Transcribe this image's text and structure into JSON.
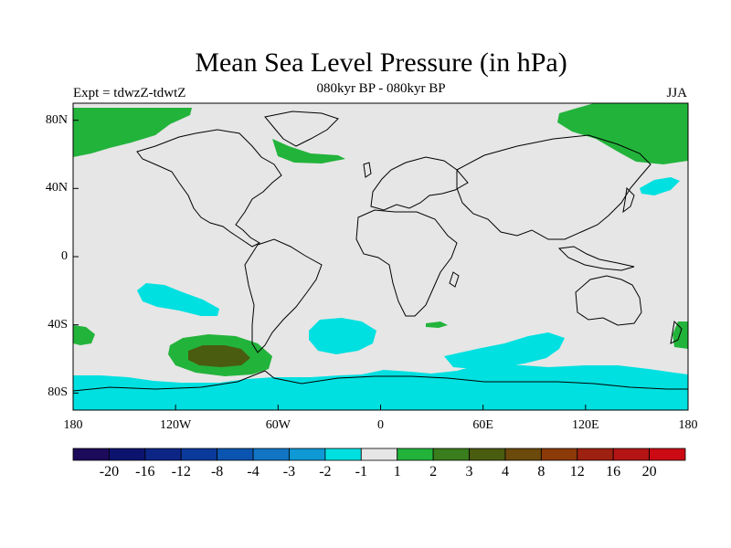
{
  "title": "Mean Sea Level Pressure (in hPa)",
  "subtitle": "080kyr BP - 080kyr BP",
  "left_label": "Expt = tdwzZ-tdwtZ",
  "right_label": "JJA",
  "lat_ticks": [
    {
      "lat": 80,
      "label": "80N"
    },
    {
      "lat": 40,
      "label": "40N"
    },
    {
      "lat": 0,
      "label": "0"
    },
    {
      "lat": -40,
      "label": "40S"
    },
    {
      "lat": -80,
      "label": "80S"
    }
  ],
  "lon_ticks": [
    {
      "lon": -180,
      "label": "180"
    },
    {
      "lon": -120,
      "label": "120W"
    },
    {
      "lon": -60,
      "label": "60W"
    },
    {
      "lon": 0,
      "label": "0"
    },
    {
      "lon": 60,
      "label": "60E"
    },
    {
      "lon": 120,
      "label": "120E"
    },
    {
      "lon": 180,
      "label": "180"
    }
  ],
  "colorbar": {
    "colors": [
      "#1c0a5a",
      "#0c136f",
      "#0d2585",
      "#0a3a9c",
      "#0b55b0",
      "#1175c4",
      "#0e98d4",
      "#00e0e0",
      "#e6e6e6",
      "#22b33b",
      "#3a7d1c",
      "#4a5c10",
      "#6b4a0c",
      "#8c3a08",
      "#9e2010",
      "#b41414",
      "#cc0a14"
    ],
    "labels": [
      "-20",
      "-16",
      "-12",
      "-8",
      "-4",
      "-3",
      "-2",
      "-1",
      "1",
      "2",
      "3",
      "4",
      "8",
      "12",
      "16",
      "20"
    ]
  },
  "colors": {
    "background": "#e6e6e6",
    "cyan": "#00e0e0",
    "green": "#22b33b",
    "dark_olive": "#4a5c10"
  }
}
